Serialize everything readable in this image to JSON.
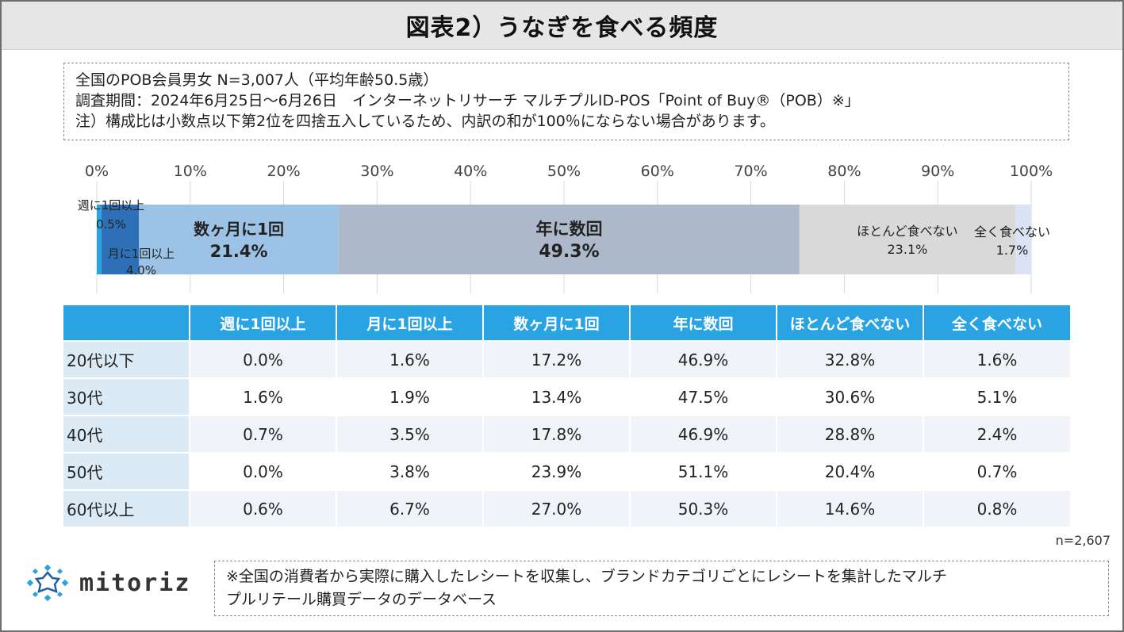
{
  "title": "図表2）うなぎを食べる頻度",
  "notes": [
    "全国のPOB会員男女 N=3,007人（平均年齢50.5歳）",
    "調査期間：2024年6月25日～6月26日　インターネットリサーチ マルチプルID-POS「Point of Buy®（POB）※」",
    "注）構成比は小数点以下第2位を四捨五入しているため、内訳の和が100％にならない場合があります。"
  ],
  "chart_data": {
    "type": "bar",
    "orientation": "horizontal-stacked-100",
    "axis_ticks": [
      "0%",
      "10%",
      "20%",
      "30%",
      "40%",
      "50%",
      "60%",
      "70%",
      "80%",
      "90%",
      "100%"
    ],
    "xlim": [
      0,
      100
    ],
    "segments": [
      {
        "label": "週に1回以上",
        "value": 0.5,
        "value_label": "0.5%",
        "color": "#29a3e2"
      },
      {
        "label": "月に1回以上",
        "value": 4.0,
        "value_label": "4.0%",
        "color": "#2e70b8"
      },
      {
        "label": "数ヶ月に1回",
        "value": 21.4,
        "value_label": "21.4%",
        "color": "#9cc3e6"
      },
      {
        "label": "年に数回",
        "value": 49.3,
        "value_label": "49.3%",
        "color": "#adb9ca"
      },
      {
        "label": "ほとんど食べない",
        "value": 23.1,
        "value_label": "23.1%",
        "color": "#d9d9d9"
      },
      {
        "label": "全く食べない",
        "value": 1.7,
        "value_label": "1.7%",
        "color": "#dae3f3"
      }
    ]
  },
  "table": {
    "headers": [
      "",
      "週に1回以上",
      "月に1回以上",
      "数ヶ月に1回",
      "年に数回",
      "ほとんど食べない",
      "全く食べない"
    ],
    "rows": [
      {
        "label": "20代以下",
        "values": [
          "0.0%",
          "1.6%",
          "17.2%",
          "46.9%",
          "32.8%",
          "1.6%"
        ]
      },
      {
        "label": "30代",
        "values": [
          "1.6%",
          "1.9%",
          "13.4%",
          "47.5%",
          "30.6%",
          "5.1%"
        ]
      },
      {
        "label": "40代",
        "values": [
          "0.7%",
          "3.5%",
          "17.8%",
          "46.9%",
          "28.8%",
          "2.4%"
        ]
      },
      {
        "label": "50代",
        "values": [
          "0.0%",
          "3.8%",
          "23.9%",
          "51.1%",
          "20.4%",
          "0.7%"
        ]
      },
      {
        "label": "60代以上",
        "values": [
          "0.6%",
          "6.7%",
          "27.0%",
          "50.3%",
          "14.6%",
          "0.8%"
        ]
      }
    ]
  },
  "sample_size": "n=2,607",
  "logo": {
    "text": "mitoriz",
    "icon": "sparkle-logo-icon",
    "color": "#29a3e2"
  },
  "footnote": [
    "※全国の消費者から実際に購入したレシートを収集し、ブランドカテゴリごとにレシートを集計したマルチ",
    "プルリテール購買データのデータベース"
  ]
}
